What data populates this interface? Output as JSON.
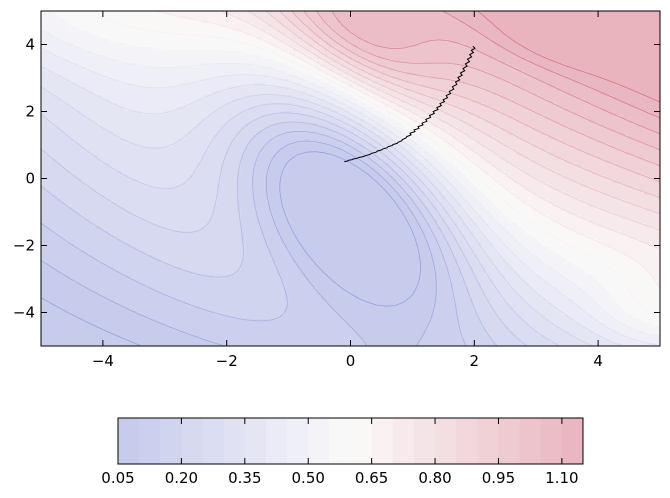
{
  "chart_data": {
    "type": "contour",
    "title": "",
    "xlabel": "",
    "ylabel": "",
    "xlim": [
      -5,
      5
    ],
    "ylim": [
      -5,
      5
    ],
    "x_ticks": [
      -4,
      -2,
      0,
      2,
      4
    ],
    "x_tick_labels": [
      "−4",
      "−2",
      "0",
      "2",
      "4"
    ],
    "y_ticks": [
      -4,
      -2,
      0,
      2,
      4
    ],
    "y_tick_labels": [
      "−4",
      "−2",
      "0",
      "2",
      "4"
    ],
    "colormap": "coolwarm",
    "color_low": "#3b4cc0",
    "color_mid": "#f2f0ee",
    "color_high": "#b40426",
    "contour_levels": [
      0.05,
      0.1,
      0.15,
      0.2,
      0.25,
      0.3,
      0.35,
      0.4,
      0.45,
      0.5,
      0.55,
      0.6,
      0.65,
      0.7,
      0.75,
      0.8,
      0.85,
      0.9,
      0.95,
      1.0,
      1.05,
      1.1,
      1.15
    ],
    "colorbar": {
      "orientation": "horizontal",
      "range": [
        0.05,
        1.15
      ],
      "ticks": [
        0.05,
        0.2,
        0.35,
        0.5,
        0.65,
        0.8,
        0.95,
        1.1
      ],
      "tick_labels": [
        "0.05",
        "0.20",
        "0.35",
        "0.50",
        "0.65",
        "0.80",
        "0.95",
        "1.10"
      ]
    },
    "minimum": [
      -0.05,
      -0.45
    ],
    "trajectory": {
      "color": "#000000",
      "points": [
        [
          -0.1,
          0.5
        ],
        [
          0.05,
          0.58
        ],
        [
          0.25,
          0.68
        ],
        [
          0.45,
          0.82
        ],
        [
          0.62,
          0.95
        ],
        [
          0.78,
          1.08
        ],
        [
          0.92,
          1.25
        ],
        [
          1.05,
          1.45
        ],
        [
          1.18,
          1.65
        ],
        [
          1.3,
          1.88
        ],
        [
          1.42,
          2.12
        ],
        [
          1.52,
          2.35
        ],
        [
          1.62,
          2.6
        ],
        [
          1.72,
          2.88
        ],
        [
          1.8,
          3.15
        ],
        [
          1.88,
          3.42
        ],
        [
          1.95,
          3.7
        ],
        [
          2.0,
          3.95
        ]
      ]
    }
  }
}
